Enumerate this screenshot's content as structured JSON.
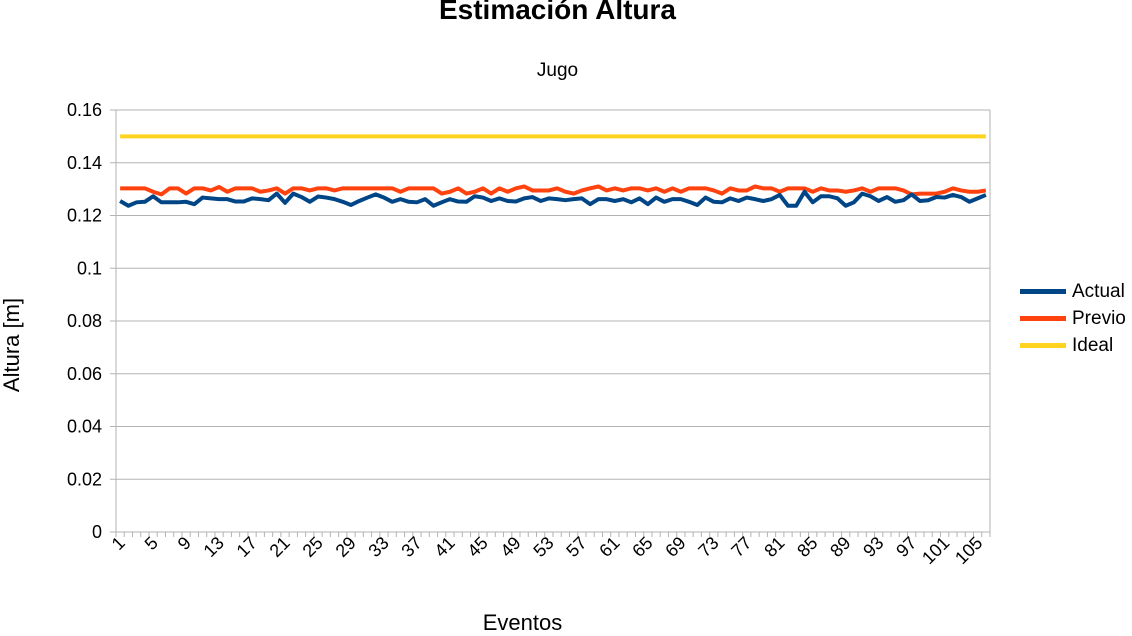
{
  "chart_data": {
    "type": "line",
    "title": "Estimación Altura",
    "subtitle": "Jugo",
    "xlabel": "Eventos",
    "ylabel": "Altura [m]",
    "ylim": [
      0,
      0.16
    ],
    "yticks": [
      "0",
      "0.02",
      "0.04",
      "0.06",
      "0.08",
      "0.1",
      "0.12",
      "0.14",
      "0.16"
    ],
    "xtick_labels": [
      "1",
      "5",
      "9",
      "13",
      "17",
      "21",
      "25",
      "29",
      "33",
      "37",
      "41",
      "45",
      "49",
      "53",
      "57",
      "61",
      "65",
      "69",
      "73",
      "77",
      "81",
      "85",
      "89",
      "93",
      "97",
      "101",
      "105"
    ],
    "x": [
      1,
      2,
      3,
      4,
      5,
      6,
      7,
      8,
      9,
      10,
      11,
      12,
      13,
      14,
      15,
      16,
      17,
      18,
      19,
      20,
      21,
      22,
      23,
      24,
      25,
      26,
      27,
      28,
      29,
      30,
      31,
      32,
      33,
      34,
      35,
      36,
      37,
      38,
      39,
      40,
      41,
      42,
      43,
      44,
      45,
      46,
      47,
      48,
      49,
      50,
      51,
      52,
      53,
      54,
      55,
      56,
      57,
      58,
      59,
      60,
      61,
      62,
      63,
      64,
      65,
      66,
      67,
      68,
      69,
      70,
      71,
      72,
      73,
      74,
      75,
      76,
      77,
      78,
      79,
      80,
      81,
      82,
      83,
      84,
      85,
      86,
      87,
      88,
      89,
      90,
      91,
      92,
      93,
      94,
      95,
      96,
      97,
      98,
      99,
      100,
      101,
      102,
      103,
      104,
      105,
      106
    ],
    "grid": true,
    "legend_position": "right",
    "series": [
      {
        "name": "Actual",
        "color": "#004586",
        "values": [
          0.1255,
          0.1237,
          0.125,
          0.1252,
          0.1273,
          0.125,
          0.125,
          0.125,
          0.1252,
          0.1243,
          0.1268,
          0.1265,
          0.1262,
          0.1262,
          0.1253,
          0.1253,
          0.1265,
          0.1262,
          0.1258,
          0.1283,
          0.1248,
          0.1283,
          0.127,
          0.1252,
          0.1272,
          0.1268,
          0.1262,
          0.1252,
          0.124,
          0.1255,
          0.1268,
          0.128,
          0.1268,
          0.1252,
          0.1262,
          0.1252,
          0.125,
          0.1262,
          0.1237,
          0.125,
          0.1262,
          0.1253,
          0.1252,
          0.1273,
          0.1268,
          0.1255,
          0.1265,
          0.1255,
          0.1253,
          0.1265,
          0.127,
          0.1255,
          0.1265,
          0.1262,
          0.1258,
          0.1262,
          0.1265,
          0.1243,
          0.1262,
          0.1262,
          0.1255,
          0.1262,
          0.125,
          0.1265,
          0.1243,
          0.1268,
          0.1252,
          0.1262,
          0.1262,
          0.1252,
          0.124,
          0.1268,
          0.1252,
          0.125,
          0.1265,
          0.1255,
          0.1268,
          0.1262,
          0.1255,
          0.1262,
          0.1278,
          0.1237,
          0.1237,
          0.129,
          0.125,
          0.1273,
          0.1273,
          0.1265,
          0.1237,
          0.125,
          0.1283,
          0.1273,
          0.1255,
          0.127,
          0.1252,
          0.1258,
          0.128,
          0.1255,
          0.1258,
          0.127,
          0.1268,
          0.1278,
          0.127,
          0.1252,
          0.1265,
          0.1278
        ]
      },
      {
        "name": "Previo",
        "color": "#ff420e",
        "values": [
          0.1303,
          0.1303,
          0.1303,
          0.1303,
          0.129,
          0.128,
          0.1303,
          0.1303,
          0.1283,
          0.1303,
          0.1303,
          0.1295,
          0.1308,
          0.129,
          0.1303,
          0.1303,
          0.1303,
          0.129,
          0.1295,
          0.1303,
          0.1283,
          0.1303,
          0.1303,
          0.1295,
          0.1303,
          0.1303,
          0.1295,
          0.1303,
          0.1303,
          0.1303,
          0.1303,
          0.1303,
          0.1303,
          0.1303,
          0.129,
          0.1303,
          0.1303,
          0.1303,
          0.1303,
          0.1283,
          0.129,
          0.1303,
          0.1283,
          0.129,
          0.1303,
          0.1283,
          0.1303,
          0.129,
          0.1303,
          0.131,
          0.1295,
          0.1295,
          0.1295,
          0.1303,
          0.129,
          0.1283,
          0.1295,
          0.1303,
          0.131,
          0.1295,
          0.1303,
          0.1295,
          0.1303,
          0.1303,
          0.1295,
          0.1303,
          0.129,
          0.1303,
          0.129,
          0.1303,
          0.1303,
          0.1303,
          0.1295,
          0.1283,
          0.1303,
          0.1295,
          0.1295,
          0.131,
          0.1303,
          0.1303,
          0.129,
          0.1303,
          0.1303,
          0.1303,
          0.129,
          0.1303,
          0.1295,
          0.1295,
          0.129,
          0.1295,
          0.1303,
          0.129,
          0.1303,
          0.1303,
          0.1303,
          0.1295,
          0.128,
          0.1283,
          0.1283,
          0.1283,
          0.129,
          0.1303,
          0.1295,
          0.129,
          0.129,
          0.1295
        ]
      },
      {
        "name": "Ideal",
        "color": "#ffd320",
        "values": [
          0.15,
          0.15,
          0.15,
          0.15,
          0.15,
          0.15,
          0.15,
          0.15,
          0.15,
          0.15,
          0.15,
          0.15,
          0.15,
          0.15,
          0.15,
          0.15,
          0.15,
          0.15,
          0.15,
          0.15,
          0.15,
          0.15,
          0.15,
          0.15,
          0.15,
          0.15,
          0.15,
          0.15,
          0.15,
          0.15,
          0.15,
          0.15,
          0.15,
          0.15,
          0.15,
          0.15,
          0.15,
          0.15,
          0.15,
          0.15,
          0.15,
          0.15,
          0.15,
          0.15,
          0.15,
          0.15,
          0.15,
          0.15,
          0.15,
          0.15,
          0.15,
          0.15,
          0.15,
          0.15,
          0.15,
          0.15,
          0.15,
          0.15,
          0.15,
          0.15,
          0.15,
          0.15,
          0.15,
          0.15,
          0.15,
          0.15,
          0.15,
          0.15,
          0.15,
          0.15,
          0.15,
          0.15,
          0.15,
          0.15,
          0.15,
          0.15,
          0.15,
          0.15,
          0.15,
          0.15,
          0.15,
          0.15,
          0.15,
          0.15,
          0.15,
          0.15,
          0.15,
          0.15,
          0.15,
          0.15,
          0.15,
          0.15,
          0.15,
          0.15,
          0.15,
          0.15,
          0.15,
          0.15,
          0.15,
          0.15,
          0.15,
          0.15,
          0.15,
          0.15,
          0.15,
          0.15
        ]
      }
    ]
  }
}
